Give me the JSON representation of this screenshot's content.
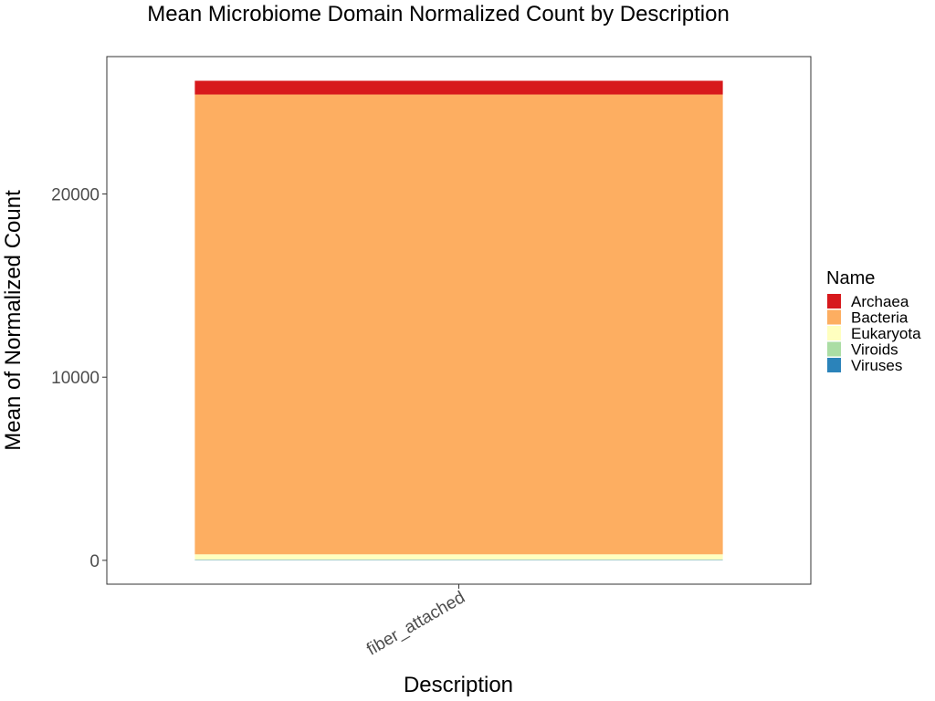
{
  "chart_data": {
    "type": "bar",
    "stacked": true,
    "title": "Mean Microbiome Domain Normalized Count by Description",
    "xlabel": "Description",
    "ylabel": "Mean of Normalized Count",
    "categories": [
      "fiber_attached"
    ],
    "yticks": [
      0,
      10000,
      20000
    ],
    "ylim": [
      -1300,
      27500
    ],
    "grid": false,
    "legend": {
      "title": "Name",
      "position": "right"
    },
    "series": [
      {
        "name": "Viruses",
        "color": "#2b83ba",
        "values": [
          20
        ]
      },
      {
        "name": "Viroids",
        "color": "#abdda4",
        "values": [
          10
        ]
      },
      {
        "name": "Eukaryota",
        "color": "#ffffbf",
        "values": [
          300
        ]
      },
      {
        "name": "Bacteria",
        "color": "#fdae61",
        "values": [
          25100
        ]
      },
      {
        "name": "Archaea",
        "color": "#d7191c",
        "values": [
          750
        ]
      }
    ],
    "legend_order": [
      "Archaea",
      "Bacteria",
      "Eukaryota",
      "Viroids",
      "Viruses"
    ]
  }
}
